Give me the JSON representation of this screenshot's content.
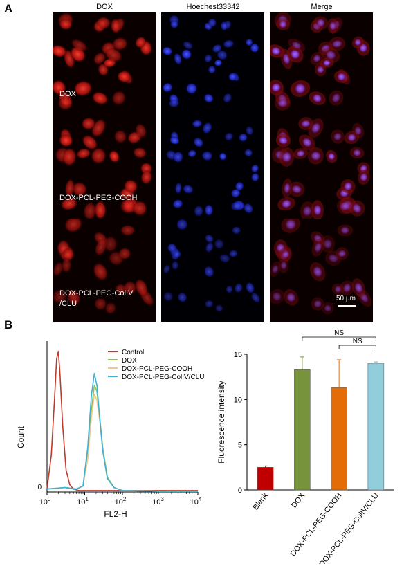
{
  "panel_a": {
    "letter": "A",
    "columns": [
      "DOX",
      "Hoechest33342",
      "Merge"
    ],
    "rows": [
      {
        "label_lines": [
          "DOX"
        ]
      },
      {
        "label_lines": [
          "DOX-PCL-PEG-COOH"
        ]
      },
      {
        "label_lines": [
          "DOX-PCL-PEG-ColIV",
          "/CLU"
        ]
      }
    ],
    "scale_bar": "50 μm"
  },
  "panel_b": {
    "letter": "B",
    "colors": {
      "control": "#c0392b",
      "dox": "#8cc152",
      "cooh": "#f5c48a",
      "coliv": "#3bb0d8"
    }
  },
  "chart_data": [
    {
      "type": "line",
      "xlabel": "FL2-H",
      "ylabel": "Count",
      "x_scale": "log",
      "xlim": [
        1,
        10000
      ],
      "x_ticks": [
        {
          "base": "10",
          "exp": "0",
          "value": 1
        },
        {
          "base": "10",
          "exp": "1",
          "value": 10
        },
        {
          "base": "10",
          "exp": "2",
          "value": 100
        },
        {
          "base": "10",
          "exp": "3",
          "value": 1000
        },
        {
          "base": "10",
          "exp": "4",
          "value": 10000
        }
      ],
      "y_ticks": [
        "0"
      ],
      "legend": [
        "Control",
        "DOX",
        "DOX-PCL-PEG-COOH",
        "DOX-PCL-PEG-ColIV/CLU"
      ],
      "legend_placement": "top-right",
      "series": [
        {
          "name": "Control",
          "x": [
            1,
            1.3,
            1.6,
            1.8,
            2.0,
            2.2,
            2.6,
            3.2,
            4.0,
            5.0,
            7.0,
            10,
            20,
            50,
            100,
            1000,
            10000
          ],
          "y": [
            0.02,
            0.25,
            0.65,
            0.9,
            0.95,
            0.8,
            0.45,
            0.15,
            0.05,
            0.02,
            0.01,
            0.01,
            0.01,
            0.01,
            0.01,
            0.01,
            0.01
          ]
        },
        {
          "name": "DOX",
          "x": [
            1,
            3,
            6,
            9,
            12,
            15,
            18,
            21,
            25,
            30,
            40,
            60,
            100,
            1000,
            10000
          ],
          "y": [
            0.02,
            0.03,
            0.02,
            0.04,
            0.25,
            0.55,
            0.72,
            0.68,
            0.5,
            0.3,
            0.1,
            0.03,
            0.01,
            0.005,
            0.005
          ]
        },
        {
          "name": "DOX-PCL-PEG-COOH",
          "x": [
            1,
            3,
            6,
            9,
            12,
            15,
            18,
            21,
            25,
            30,
            40,
            60,
            100,
            1000,
            10000
          ],
          "y": [
            0.02,
            0.03,
            0.02,
            0.04,
            0.22,
            0.5,
            0.66,
            0.62,
            0.48,
            0.28,
            0.09,
            0.03,
            0.01,
            0.005,
            0.005
          ]
        },
        {
          "name": "DOX-PCL-PEG-ColIV/CLU",
          "x": [
            1,
            3,
            6,
            9,
            12,
            15,
            18,
            21,
            25,
            30,
            40,
            60,
            100,
            1000,
            10000
          ],
          "y": [
            0.02,
            0.03,
            0.02,
            0.04,
            0.3,
            0.65,
            0.8,
            0.72,
            0.5,
            0.28,
            0.09,
            0.03,
            0.01,
            0.005,
            0.005
          ]
        }
      ]
    },
    {
      "type": "bar",
      "ylabel": "Fluorescence intensity",
      "categories": [
        "Blank",
        "DOX",
        "DOX-PCL-PEG-COOH",
        "DOX-PCL-PEG-ColIV/CLU"
      ],
      "values": [
        2.5,
        13.3,
        11.3,
        14.0
      ],
      "errors": [
        0.15,
        1.4,
        3.1,
        0.15
      ],
      "colors": [
        "#c00000",
        "#77933c",
        "#e36c09",
        "#92cddc"
      ],
      "ylim": [
        0,
        15
      ],
      "y_ticks": [
        0,
        5,
        10,
        15
      ],
      "annotations": [
        {
          "text": "NS",
          "from": "DOX",
          "to": "DOX-PCL-PEG-ColIV/CLU"
        },
        {
          "text": "NS",
          "from": "DOX-PCL-PEG-COOH",
          "to": "DOX-PCL-PEG-ColIV/CLU"
        }
      ]
    }
  ]
}
